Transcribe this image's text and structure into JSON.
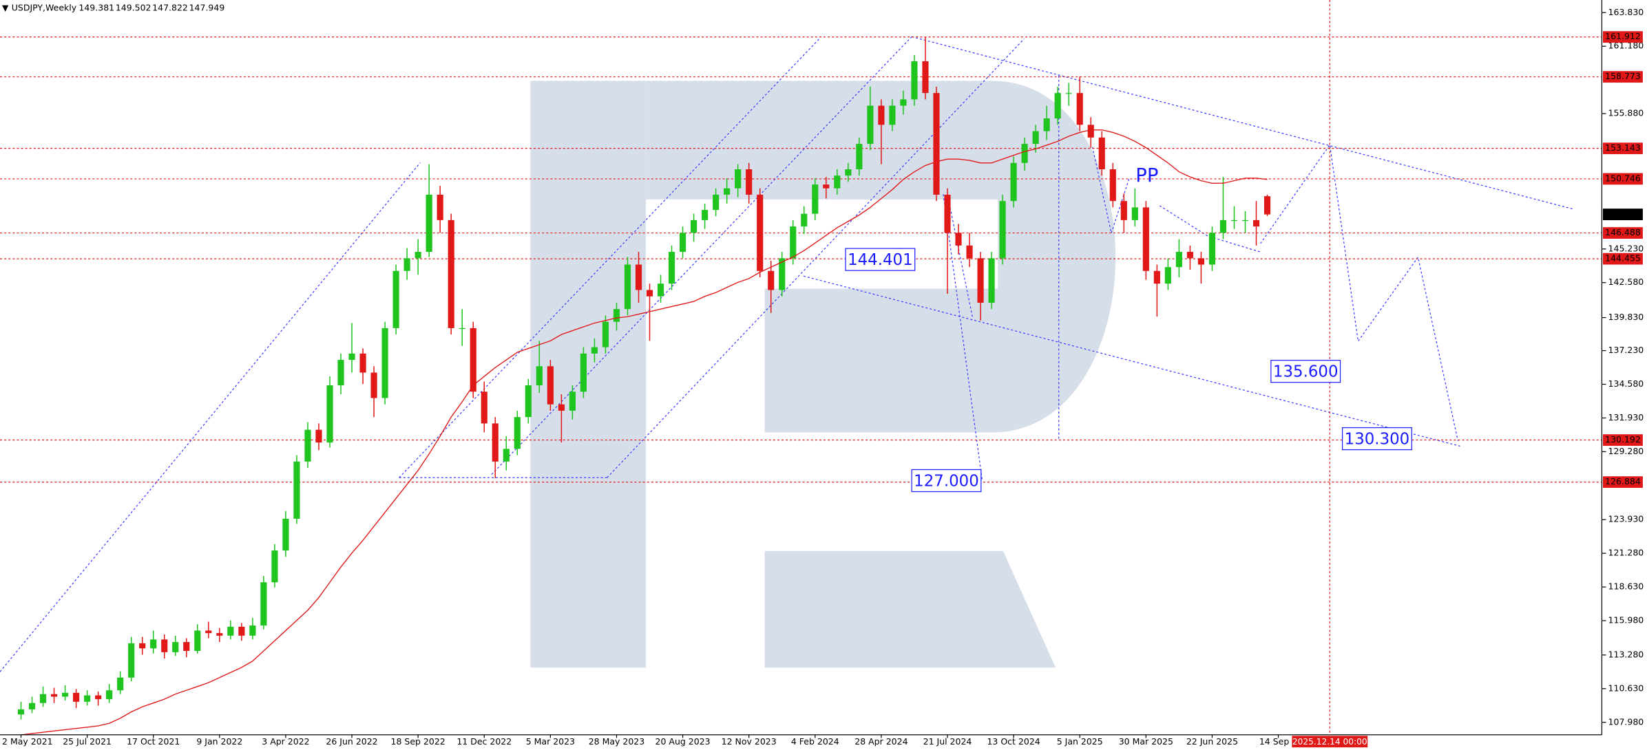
{
  "chart_data": {
    "type": "candlestick",
    "symbol": "USDJPY,Weekly",
    "ylim": [
      107.0,
      164.82
    ],
    "yticks": [
      {
        "value": 163.83,
        "label": "163.830"
      },
      {
        "value": 161.18,
        "label": "161.180"
      },
      {
        "value": 155.88,
        "label": "155.880"
      },
      {
        "value": 145.23,
        "label": "145.230"
      },
      {
        "value": 142.58,
        "label": "142.580"
      },
      {
        "value": 139.83,
        "label": "139.830"
      },
      {
        "value": 137.23,
        "label": "137.230"
      },
      {
        "value": 134.58,
        "label": "134.580"
      },
      {
        "value": 131.93,
        "label": "131.930"
      },
      {
        "value": 129.28,
        "label": "129.280"
      },
      {
        "value": 123.93,
        "label": "123.930"
      },
      {
        "value": 121.28,
        "label": "121.280"
      },
      {
        "value": 118.63,
        "label": "118.630"
      },
      {
        "value": 115.98,
        "label": "115.980"
      },
      {
        "value": 113.28,
        "label": "113.280"
      },
      {
        "value": 110.63,
        "label": "110.630"
      },
      {
        "value": 107.98,
        "label": "107.980"
      }
    ],
    "x_labels": [
      "2 May 2021",
      "25 Jul 2021",
      "17 Oct 2021",
      "9 Jan 2022",
      "3 Apr 2022",
      "26 Jun 2022",
      "18 Sep 2022",
      "11 Dec 2022",
      "5 Mar 2023",
      "28 May 2023",
      "20 Aug 2023",
      "12 Nov 2023",
      "4 Feb 2024",
      "28 Apr 2024",
      "21 Jul 2024",
      "13 Oct 2024",
      "5 Jan 2025",
      "30 Mar 2025",
      "22 Jun 2025",
      "14 Sep 2"
    ],
    "up_color": "#1fc41f",
    "down_color": "#e01818",
    "ma_color": "#e01818",
    "level_color": "#e01818",
    "annotation_color": "#1a1aff",
    "levels": [
      161.912,
      158.773,
      153.143,
      150.746,
      146.488,
      144.455,
      130.192,
      126.884
    ],
    "annotations": [
      144.401,
      {
        "value": 135.6,
        "label": "135.600"
      },
      {
        "value": 130.3,
        "label": "130.300"
      },
      {
        "value": 127.0,
        "label": "127.000"
      }
    ],
    "pattern_label": "PP",
    "time_marker": "2025.12.14 00:00",
    "candles": [
      [
        108.6,
        109.6,
        108.2,
        109.0
      ],
      [
        109.0,
        110.0,
        108.7,
        109.5
      ],
      [
        109.5,
        110.8,
        109.2,
        110.2
      ],
      [
        110.2,
        110.7,
        109.5,
        110.0
      ],
      [
        110.0,
        110.9,
        109.7,
        110.3
      ],
      [
        110.3,
        110.6,
        109.1,
        109.6
      ],
      [
        109.6,
        110.5,
        109.3,
        110.1
      ],
      [
        110.1,
        110.4,
        109.3,
        109.8
      ],
      [
        109.8,
        111.0,
        109.5,
        110.5
      ],
      [
        110.5,
        112.0,
        110.2,
        111.5
      ],
      [
        111.5,
        114.7,
        111.2,
        114.2
      ],
      [
        114.2,
        114.7,
        113.3,
        113.8
      ],
      [
        113.8,
        115.2,
        113.4,
        114.5
      ],
      [
        114.5,
        114.9,
        113.0,
        113.5
      ],
      [
        113.5,
        114.8,
        113.2,
        114.3
      ],
      [
        114.3,
        114.6,
        113.1,
        113.6
      ],
      [
        113.6,
        115.7,
        113.4,
        115.2
      ],
      [
        115.2,
        115.9,
        114.6,
        115.0
      ],
      [
        115.0,
        115.4,
        114.3,
        114.8
      ],
      [
        114.8,
        116.0,
        114.5,
        115.5
      ],
      [
        115.5,
        115.8,
        114.4,
        114.8
      ],
      [
        114.8,
        116.2,
        114.5,
        115.6
      ],
      [
        115.6,
        119.5,
        115.3,
        119.0
      ],
      [
        119.0,
        122.0,
        118.6,
        121.5
      ],
      [
        121.5,
        124.6,
        121.0,
        124.0
      ],
      [
        124.0,
        129.0,
        123.6,
        128.5
      ],
      [
        128.5,
        131.6,
        128.0,
        131.0
      ],
      [
        131.0,
        131.5,
        129.4,
        130.0
      ],
      [
        130.0,
        135.2,
        129.6,
        134.5
      ],
      [
        134.5,
        137.0,
        133.8,
        136.5
      ],
      [
        136.5,
        139.4,
        135.5,
        137.0
      ],
      [
        137.0,
        137.4,
        134.6,
        135.5
      ],
      [
        135.5,
        136.0,
        132.0,
        133.5
      ],
      [
        133.5,
        139.5,
        133.0,
        139.0
      ],
      [
        139.0,
        144.0,
        138.5,
        143.5
      ],
      [
        143.5,
        145.3,
        142.8,
        144.5
      ],
      [
        144.5,
        146.0,
        143.2,
        145.0
      ],
      [
        145.0,
        151.9,
        144.6,
        149.5
      ],
      [
        149.5,
        150.2,
        146.5,
        147.5
      ],
      [
        147.5,
        148.0,
        138.5,
        139.0
      ],
      [
        139.0,
        140.5,
        137.6,
        139.0
      ],
      [
        139.0,
        139.5,
        133.5,
        134.0
      ],
      [
        134.0,
        134.8,
        130.8,
        131.5
      ],
      [
        131.5,
        132.0,
        127.2,
        128.5
      ],
      [
        128.5,
        130.5,
        127.8,
        129.5
      ],
      [
        129.5,
        132.5,
        129.0,
        132.0
      ],
      [
        132.0,
        135.0,
        131.5,
        134.5
      ],
      [
        134.5,
        138.0,
        133.9,
        136.0
      ],
      [
        136.0,
        136.5,
        132.5,
        133.0
      ],
      [
        133.0,
        133.8,
        130.0,
        132.5
      ],
      [
        132.5,
        134.5,
        131.8,
        134.0
      ],
      [
        134.0,
        137.5,
        133.5,
        137.0
      ],
      [
        137.0,
        138.2,
        136.3,
        137.5
      ],
      [
        137.5,
        140.0,
        137.0,
        139.5
      ],
      [
        139.5,
        141.0,
        138.8,
        140.5
      ],
      [
        140.5,
        144.6,
        140.0,
        144.0
      ],
      [
        144.0,
        145.0,
        141.0,
        142.0
      ],
      [
        142.0,
        142.5,
        138.0,
        141.5
      ],
      [
        141.5,
        143.2,
        141.0,
        142.5
      ],
      [
        142.5,
        145.5,
        142.0,
        145.0
      ],
      [
        145.0,
        147.0,
        144.5,
        146.5
      ],
      [
        146.5,
        148.0,
        145.8,
        147.5
      ],
      [
        147.5,
        148.8,
        146.8,
        148.3
      ],
      [
        148.3,
        150.0,
        147.8,
        149.5
      ],
      [
        149.5,
        150.8,
        148.8,
        150.0
      ],
      [
        150.0,
        151.9,
        149.3,
        151.5
      ],
      [
        151.5,
        152.0,
        148.8,
        149.5
      ],
      [
        149.5,
        150.0,
        143.0,
        143.5
      ],
      [
        143.5,
        144.3,
        140.2,
        142.0
      ],
      [
        142.0,
        145.0,
        141.5,
        144.5
      ],
      [
        144.5,
        147.5,
        144.0,
        147.0
      ],
      [
        147.0,
        148.6,
        146.4,
        148.0
      ],
      [
        148.0,
        150.8,
        147.5,
        150.3
      ],
      [
        150.3,
        150.9,
        149.2,
        150.0
      ],
      [
        150.0,
        151.5,
        149.5,
        151.0
      ],
      [
        151.0,
        152.0,
        150.5,
        151.5
      ],
      [
        151.5,
        154.0,
        151.0,
        153.5
      ],
      [
        153.5,
        158.0,
        153.0,
        156.5
      ],
      [
        156.5,
        157.0,
        151.9,
        155.0
      ],
      [
        155.0,
        157.0,
        154.5,
        156.5
      ],
      [
        156.5,
        157.7,
        155.8,
        157.0
      ],
      [
        157.0,
        160.5,
        156.5,
        160.0
      ],
      [
        160.0,
        161.9,
        157.0,
        157.5
      ],
      [
        157.5,
        158.0,
        149.0,
        149.5
      ],
      [
        149.5,
        150.0,
        141.7,
        146.5
      ],
      [
        146.5,
        147.2,
        144.8,
        145.5
      ],
      [
        145.5,
        146.5,
        143.8,
        144.5
      ],
      [
        144.5,
        145.0,
        139.6,
        141.0
      ],
      [
        141.0,
        145.0,
        140.5,
        144.5
      ],
      [
        144.5,
        149.5,
        144.0,
        149.0
      ],
      [
        149.0,
        152.5,
        148.5,
        152.0
      ],
      [
        152.0,
        154.0,
        151.4,
        153.5
      ],
      [
        153.5,
        155.0,
        152.8,
        154.5
      ],
      [
        154.5,
        156.5,
        153.8,
        155.5
      ],
      [
        155.5,
        158.0,
        155.0,
        157.5
      ],
      [
        157.5,
        158.3,
        156.5,
        157.5
      ],
      [
        157.5,
        158.8,
        154.5,
        155.0
      ],
      [
        155.0,
        155.6,
        153.2,
        154.0
      ],
      [
        154.0,
        154.5,
        151.0,
        151.5
      ],
      [
        151.5,
        152.0,
        148.5,
        149.0
      ],
      [
        149.0,
        149.6,
        146.5,
        147.5
      ],
      [
        147.5,
        150.0,
        147.0,
        148.5
      ],
      [
        148.5,
        149.0,
        142.8,
        143.5
      ],
      [
        143.5,
        144.0,
        139.9,
        142.5
      ],
      [
        142.5,
        144.5,
        142.0,
        143.8
      ],
      [
        143.8,
        146.0,
        143.0,
        145.0
      ],
      [
        145.0,
        145.5,
        143.6,
        144.5
      ],
      [
        144.5,
        145.0,
        142.5,
        144.0
      ],
      [
        144.0,
        147.0,
        143.5,
        146.5
      ],
      [
        146.5,
        150.9,
        146.0,
        147.5
      ],
      [
        147.5,
        148.6,
        146.8,
        147.5
      ],
      [
        147.5,
        148.2,
        146.5,
        147.5
      ],
      [
        147.5,
        149.0,
        145.5,
        147.0
      ],
      [
        149.381,
        149.502,
        147.822,
        147.949
      ]
    ],
    "moving_average": [
      107.0,
      107.1,
      107.2,
      107.3,
      107.4,
      107.5,
      107.6,
      107.7,
      107.9,
      108.3,
      108.8,
      109.2,
      109.5,
      109.8,
      110.2,
      110.5,
      110.8,
      111.1,
      111.5,
      111.9,
      112.3,
      112.8,
      113.6,
      114.4,
      115.2,
      116.0,
      116.8,
      117.8,
      119.0,
      120.2,
      121.3,
      122.3,
      123.4,
      124.5,
      125.6,
      126.7,
      127.8,
      129.1,
      130.5,
      132.0,
      133.2,
      134.5,
      135.2,
      135.9,
      136.5,
      137.1,
      137.4,
      137.7,
      138.0,
      138.5,
      138.8,
      139.1,
      139.4,
      139.6,
      139.8,
      139.9,
      140.1,
      140.3,
      140.5,
      140.7,
      140.9,
      141.1,
      141.5,
      141.8,
      142.2,
      142.6,
      142.9,
      143.4,
      143.8,
      144.2,
      144.6,
      145.1,
      145.7,
      146.3,
      146.9,
      147.4,
      147.9,
      148.5,
      149.2,
      149.9,
      150.7,
      151.3,
      151.8,
      152.1,
      152.3,
      152.3,
      152.2,
      152.0,
      152.0,
      152.3,
      152.6,
      152.9,
      153.1,
      153.4,
      153.7,
      154.1,
      154.4,
      154.6,
      154.6,
      154.4,
      154.1,
      153.7,
      153.2,
      152.6,
      152.0,
      151.3,
      150.9,
      150.6,
      150.4,
      150.4,
      150.6,
      150.8,
      150.8,
      150.7
    ]
  }
}
